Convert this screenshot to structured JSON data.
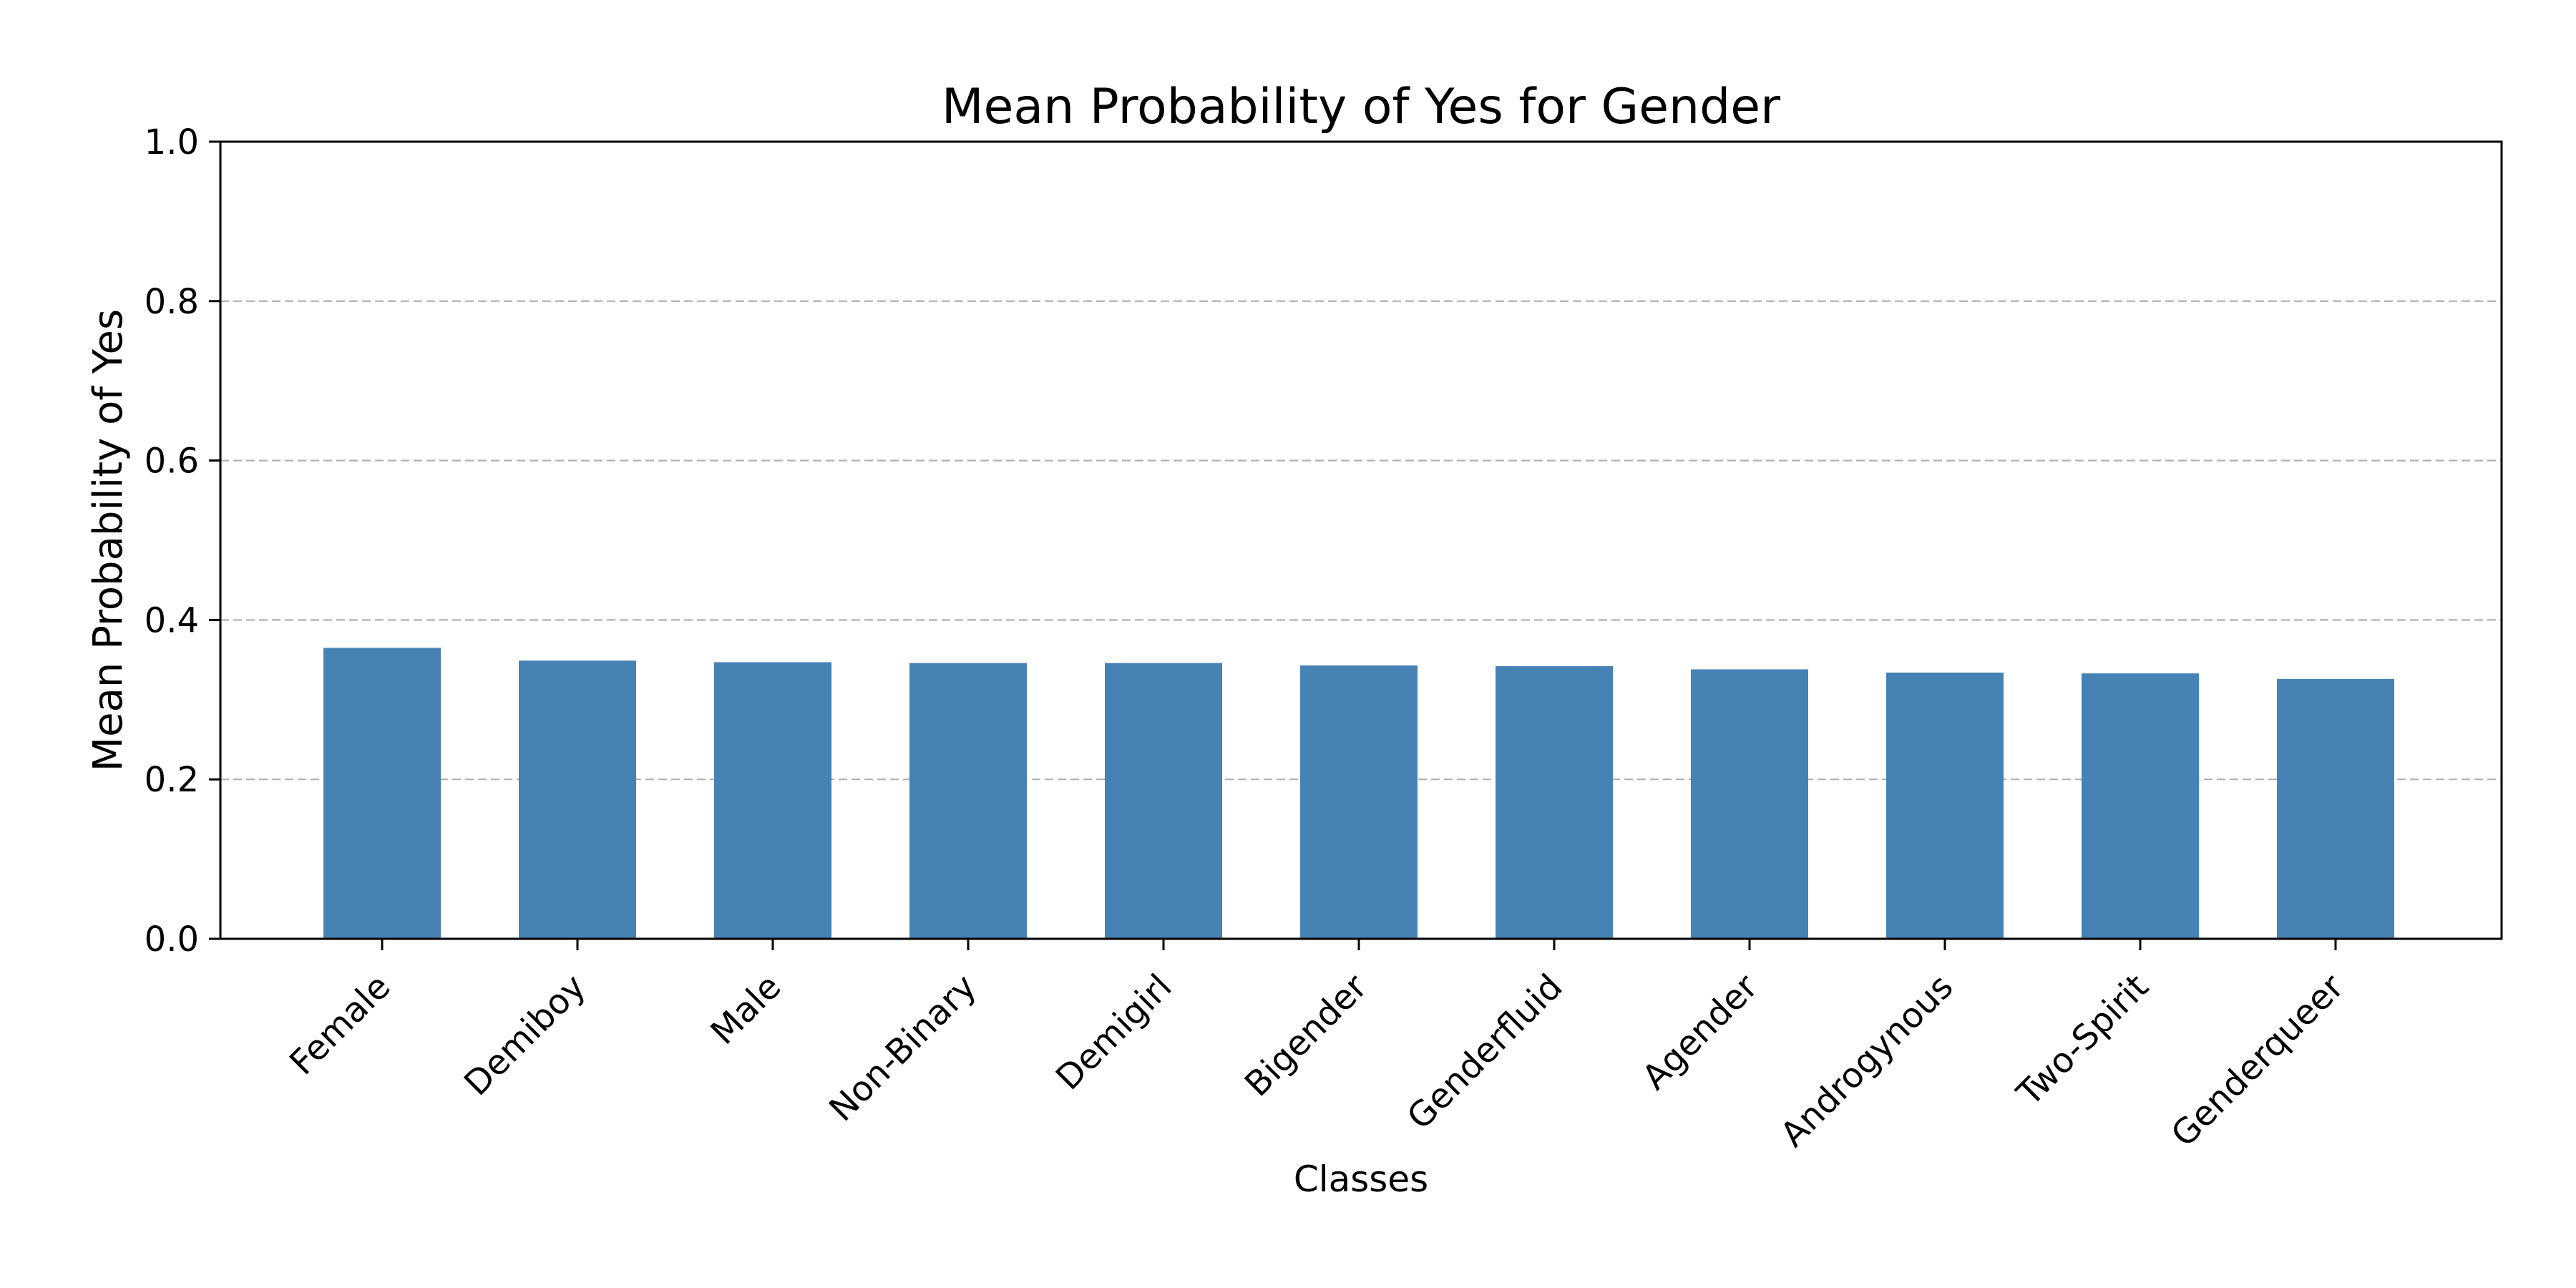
{
  "chart_data": {
    "type": "bar",
    "title": "Mean Probability of Yes for Gender",
    "xlabel": "Classes",
    "ylabel": "Mean Probability of Yes",
    "categories": [
      "Female",
      "Demiboy",
      "Male",
      "Non-Binary",
      "Demigirl",
      "Bigender",
      "Genderfluid",
      "Agender",
      "Androgynous",
      "Two-Spirit",
      "Genderqueer"
    ],
    "values": [
      0.365,
      0.349,
      0.347,
      0.346,
      0.346,
      0.343,
      0.342,
      0.338,
      0.334,
      0.333,
      0.326
    ],
    "ylim": [
      0,
      1.0
    ],
    "yticks": [
      "0.0",
      "0.2",
      "0.4",
      "0.6",
      "0.8",
      "1.0"
    ],
    "grid": "y-axis dashed",
    "bar_color": "#4682b4",
    "legend": "none"
  }
}
